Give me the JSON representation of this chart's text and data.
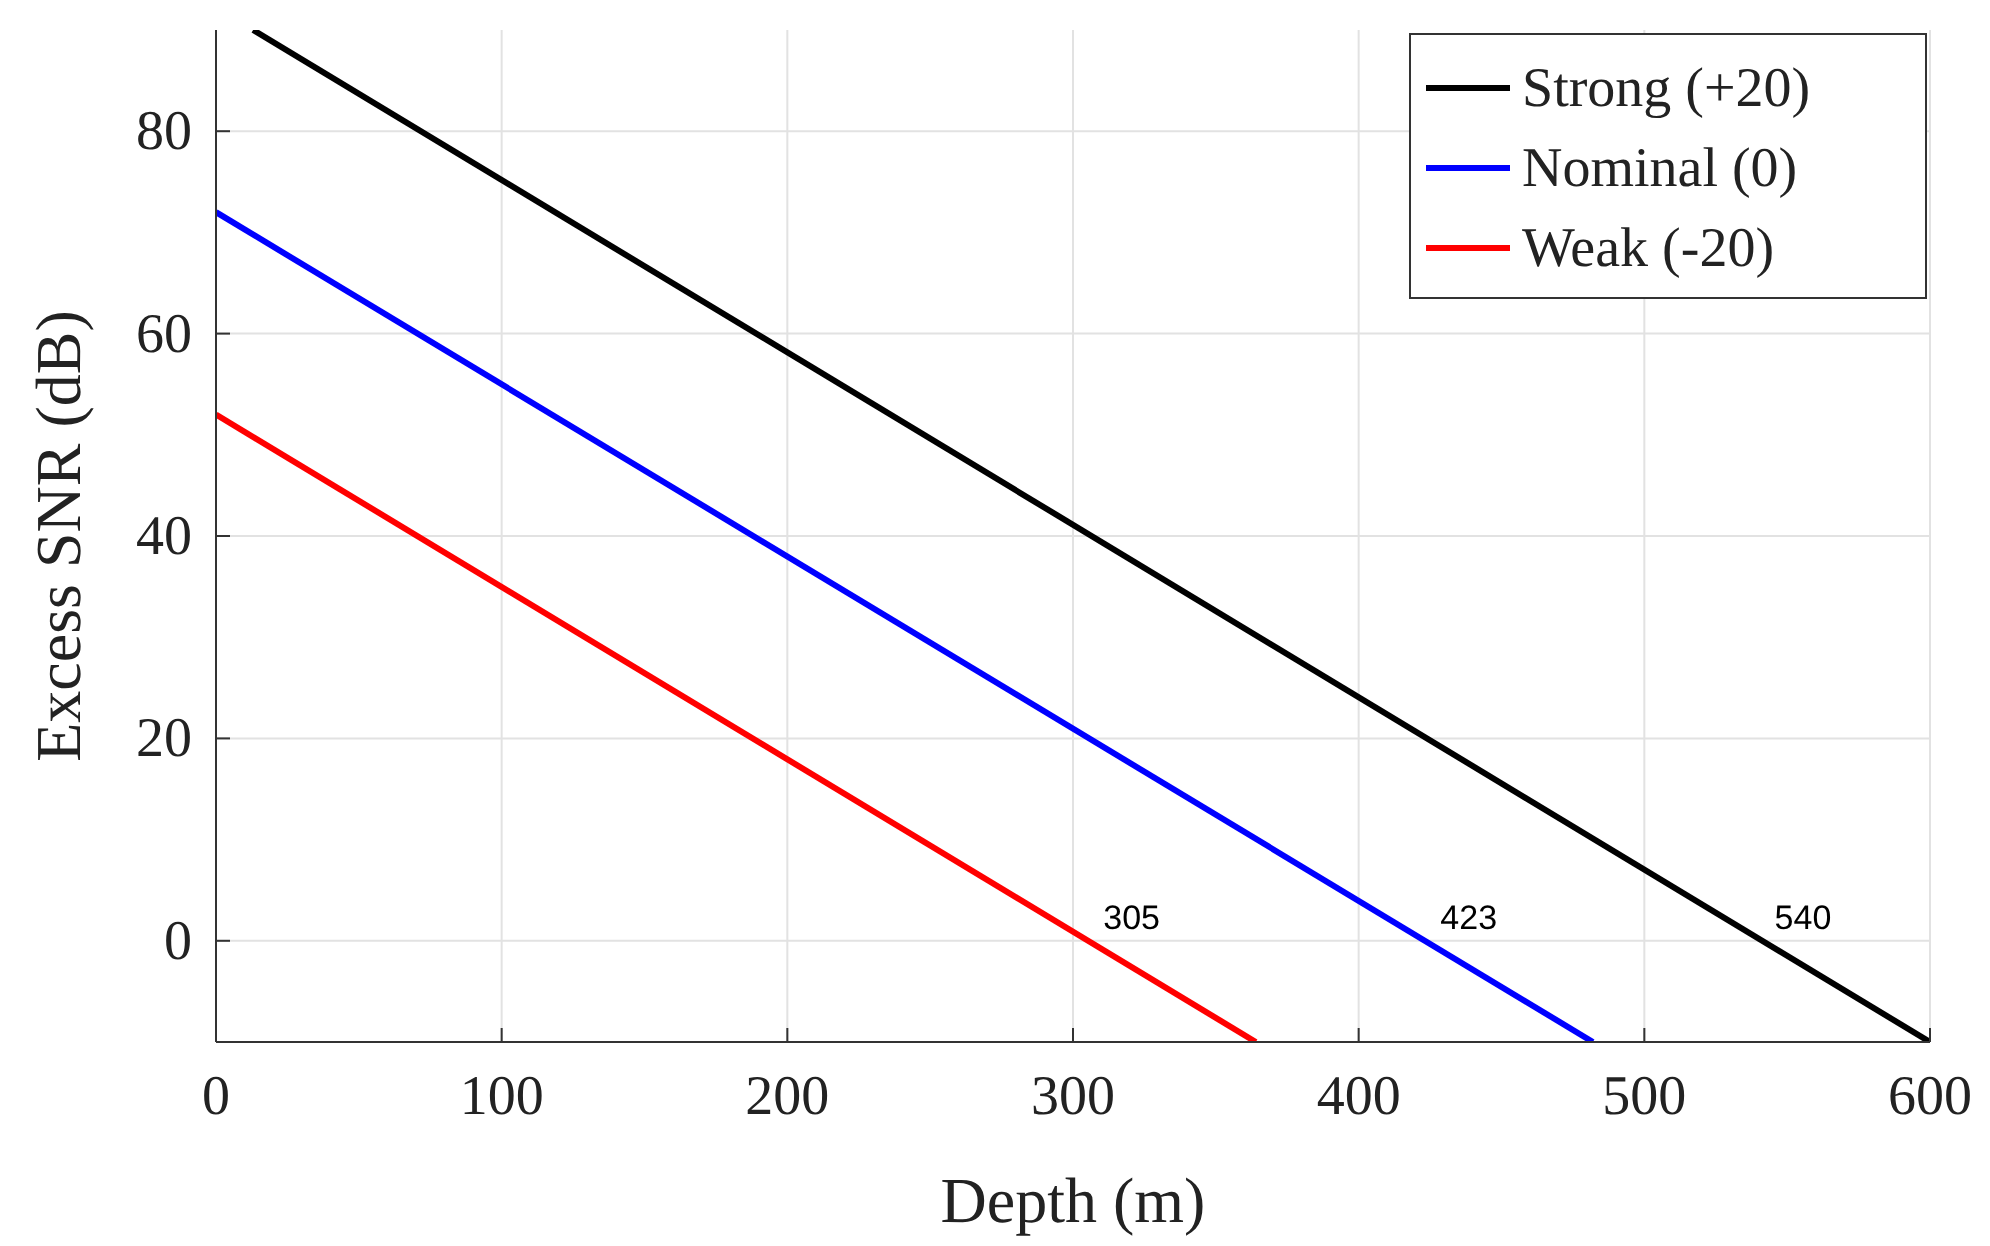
{
  "chart_data": {
    "type": "line",
    "xlabel": "Depth (m)",
    "ylabel": "Excess SNR (dB)",
    "xlim": [
      0,
      600
    ],
    "ylim": [
      -10,
      90
    ],
    "xticks": [
      0,
      100,
      200,
      300,
      400,
      500,
      600
    ],
    "yticks": [
      0,
      20,
      40,
      60,
      80
    ],
    "grid": true,
    "legend": "top right",
    "marker": "none",
    "line_style": "solid",
    "series": [
      {
        "name": "Strong (+20)",
        "color": "#000000",
        "x": [
          13,
          600
        ],
        "values": [
          90,
          -10
        ]
      },
      {
        "name": "Nominal (0)",
        "color": "#0000ff",
        "x": [
          0,
          482
        ],
        "values": [
          72,
          -10
        ]
      },
      {
        "name": "Weak (-20)",
        "color": "#ff0000",
        "x": [
          0,
          364
        ],
        "values": [
          52,
          -10
        ]
      }
    ],
    "annotations": [
      {
        "text": "305",
        "x": 305,
        "y": 0
      },
      {
        "text": "423",
        "x": 423,
        "y": 0
      },
      {
        "text": "540",
        "x": 540,
        "y": 0
      }
    ]
  }
}
